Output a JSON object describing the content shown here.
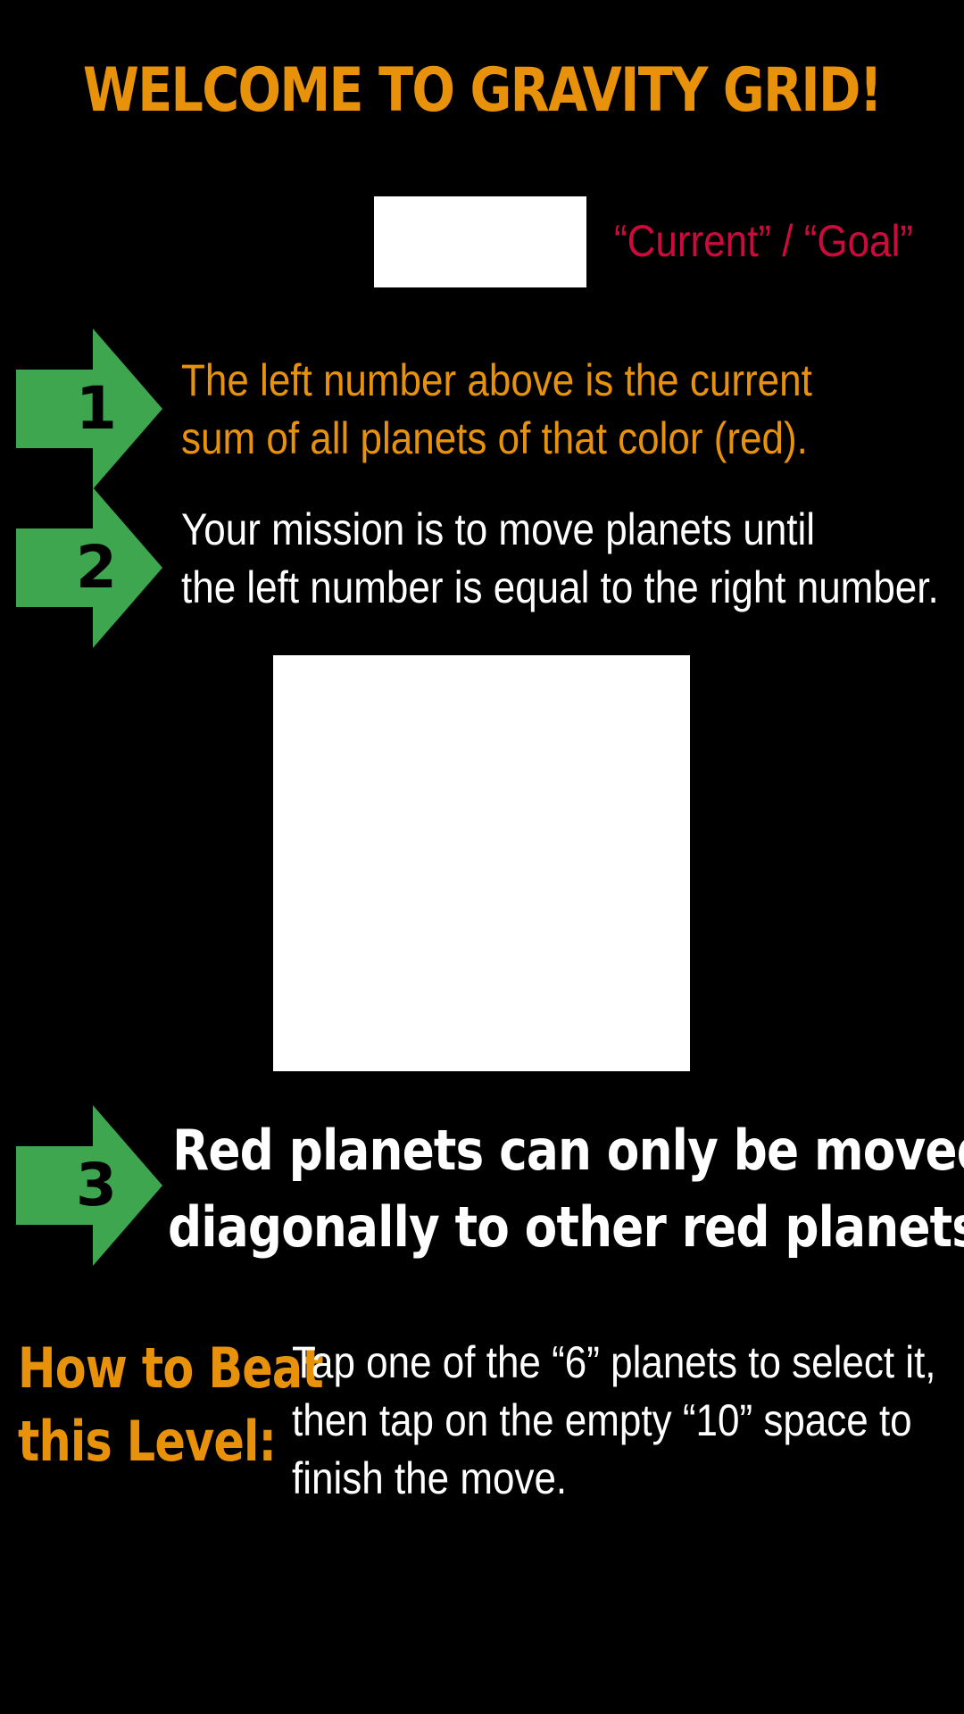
{
  "colors": {
    "background": "#000000",
    "orange": "#e8920c",
    "white": "#ffffff",
    "crimson": "#cc0a3c",
    "arrow_green": "#3ea64e"
  },
  "title": "WELCOME TO GRAVITY GRID!",
  "legend": "“Current” / “Goal”",
  "steps": [
    {
      "number": "1",
      "icon": "right-arrow-icon",
      "lines": [
        "The left number above is the current",
        "sum of all planets of that color (red)."
      ]
    },
    {
      "number": "2",
      "icon": "right-arrow-icon",
      "lines": [
        "Your mission is to move planets until",
        "the left number is equal to the right number."
      ]
    },
    {
      "number": "3",
      "icon": "right-arrow-icon",
      "lines": [
        "Red planets can only be moved",
        "diagonally to other red planets."
      ]
    }
  ],
  "how_to": {
    "heading_lines": [
      "How to Beat",
      "this Level:"
    ],
    "body_lines": [
      "Tap one of the “6” planets to select it,",
      "then tap on the empty “10” space to",
      "finish the move."
    ]
  }
}
